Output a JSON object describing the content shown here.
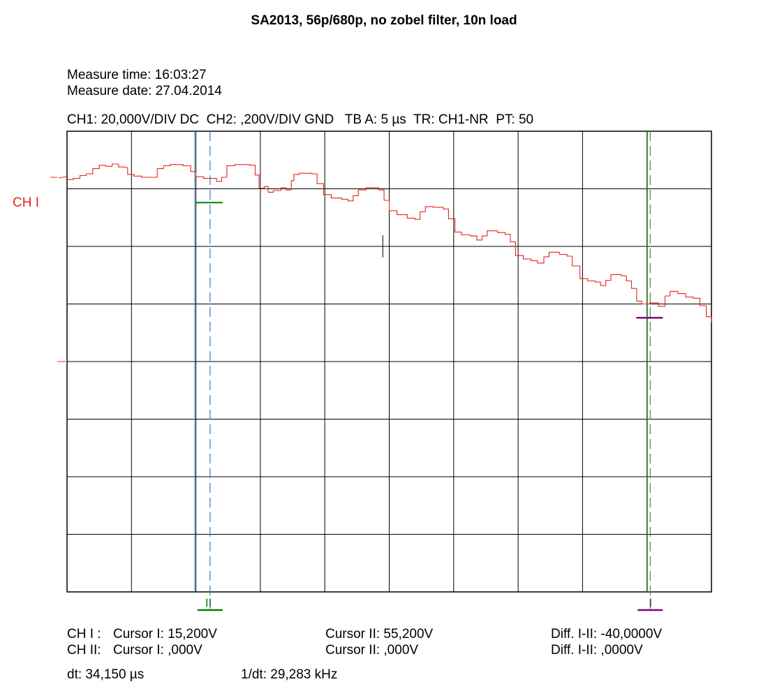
{
  "title": "SA2013, 56p/680p, no zobel filter, 10n load",
  "measure": {
    "time": "Measure time: 16:03:27",
    "date": "Measure date: 27.04.2014"
  },
  "settings": "CH1: 20,000V/DIV DC  CH2: ,200V/DIV GND   TB A: 5 µs  TR: CH1-NR  PT: 50",
  "channel_marker": "CH I",
  "cursor_markers": {
    "cursor1": "I",
    "cursor2": "II"
  },
  "readout": {
    "ch1_label": "CH I :",
    "ch1_cursor1": "Cursor I: 15,200V",
    "ch1_cursor2": "Cursor II: 55,200V",
    "ch1_diff": "Diff. I-II: -40,0000V",
    "ch2_label": "CH II:",
    "ch2_cursor1": "Cursor I: ,000V",
    "ch2_cursor2": "Cursor II: ,000V",
    "ch2_diff": "Diff. I-II: ,0000V",
    "dt": "dt: 34,150 µs",
    "inv_dt": "1/dt: 29,283 kHz"
  },
  "colors": {
    "trace": "#e8231b",
    "channel_label": "#e8231b",
    "cursor1": "#800080",
    "cursor2": "#008000",
    "cursor_line_blue": "#3a7ab8",
    "cursor_line_green": "#2a9a3a",
    "grid": "#000000"
  },
  "chart_data": {
    "type": "line",
    "x_unit": "µs",
    "y_unit": "V",
    "x_per_div": 5,
    "y_per_div": 20,
    "divisions": {
      "x": 10,
      "y": 8
    },
    "x_range": [
      0,
      50
    ],
    "y_range": [
      -80,
      80
    ],
    "grid": true,
    "series": [
      {
        "points": [
          [
            0.0,
            63.2
          ],
          [
            0.5,
            63.6
          ],
          [
            1.0,
            64.6
          ],
          [
            1.5,
            65.2
          ],
          [
            2.0,
            67.0
          ],
          [
            2.5,
            68.2
          ],
          [
            3.0,
            67.8
          ],
          [
            3.5,
            68.6
          ],
          [
            4.0,
            67.6
          ],
          [
            4.5,
            67.4
          ],
          [
            4.7,
            65.0
          ],
          [
            5.2,
            64.4
          ],
          [
            5.8,
            64.0
          ],
          [
            6.6,
            64.0
          ],
          [
            7.0,
            67.0
          ],
          [
            7.5,
            68.0
          ],
          [
            8.0,
            68.4
          ],
          [
            9.0,
            68.0
          ],
          [
            9.6,
            66.0
          ],
          [
            10.0,
            64.2
          ],
          [
            10.6,
            63.6
          ],
          [
            11.6,
            62.6
          ],
          [
            12.0,
            64.0
          ],
          [
            12.4,
            68.0
          ],
          [
            13.0,
            68.4
          ],
          [
            14.2,
            68.2
          ],
          [
            14.6,
            64.8
          ],
          [
            14.9,
            60.2
          ],
          [
            15.3,
            60.8
          ],
          [
            15.6,
            58.8
          ],
          [
            16.0,
            59.4
          ],
          [
            16.6,
            60.4
          ],
          [
            17.0,
            59.6
          ],
          [
            17.4,
            62.8
          ],
          [
            17.6,
            65.0
          ],
          [
            18.0,
            65.4
          ],
          [
            19.0,
            65.2
          ],
          [
            19.4,
            61.8
          ],
          [
            19.9,
            58.0
          ],
          [
            20.5,
            56.8
          ],
          [
            21.3,
            56.4
          ],
          [
            21.8,
            55.8
          ],
          [
            22.2,
            57.6
          ],
          [
            22.6,
            59.6
          ],
          [
            23.2,
            60.4
          ],
          [
            24.2,
            59.6
          ],
          [
            24.6,
            56.0
          ],
          [
            25.0,
            52.4
          ],
          [
            25.6,
            51.0
          ],
          [
            26.4,
            49.8
          ],
          [
            27.0,
            49.4
          ],
          [
            27.4,
            52.0
          ],
          [
            27.8,
            53.8
          ],
          [
            28.4,
            53.6
          ],
          [
            29.2,
            53.0
          ],
          [
            29.6,
            49.6
          ],
          [
            30.1,
            45.0
          ],
          [
            30.6,
            44.0
          ],
          [
            31.3,
            43.6
          ],
          [
            31.8,
            42.2
          ],
          [
            32.2,
            43.6
          ],
          [
            32.6,
            45.4
          ],
          [
            33.4,
            44.8
          ],
          [
            34.0,
            44.2
          ],
          [
            34.4,
            41.6
          ],
          [
            34.8,
            36.8
          ],
          [
            35.4,
            35.6
          ],
          [
            36.0,
            35.0
          ],
          [
            36.5,
            34.2
          ],
          [
            37.0,
            36.4
          ],
          [
            37.4,
            38.0
          ],
          [
            38.2,
            37.2
          ],
          [
            38.8,
            36.6
          ],
          [
            39.2,
            33.2
          ],
          [
            39.8,
            28.8
          ],
          [
            40.4,
            28.0
          ],
          [
            41.0,
            27.6
          ],
          [
            41.4,
            26.4
          ],
          [
            41.8,
            28.2
          ],
          [
            42.2,
            30.2
          ],
          [
            43.0,
            29.8
          ],
          [
            43.4,
            28.0
          ],
          [
            43.8,
            25.4
          ],
          [
            44.2,
            21.0
          ],
          [
            44.6,
            20.0
          ],
          [
            45.2,
            20.4
          ],
          [
            45.9,
            19.2
          ],
          [
            46.4,
            22.8
          ],
          [
            46.8,
            24.4
          ],
          [
            47.4,
            23.6
          ],
          [
            48.0,
            22.4
          ],
          [
            48.6,
            22.0
          ],
          [
            49.1,
            19.4
          ],
          [
            49.6,
            15.6
          ],
          [
            50.0,
            13.4
          ]
        ]
      }
    ],
    "reference_level": 64,
    "ground_level": 0,
    "trigger_mark": {
      "x": 24.5,
      "y": 40
    },
    "cursors": [
      {
        "label": "II",
        "x": 11.1,
        "y": 55.2,
        "line_color": "blue"
      },
      {
        "label": "I",
        "x": 45.25,
        "y": 15.2,
        "line_color": "green"
      }
    ]
  }
}
